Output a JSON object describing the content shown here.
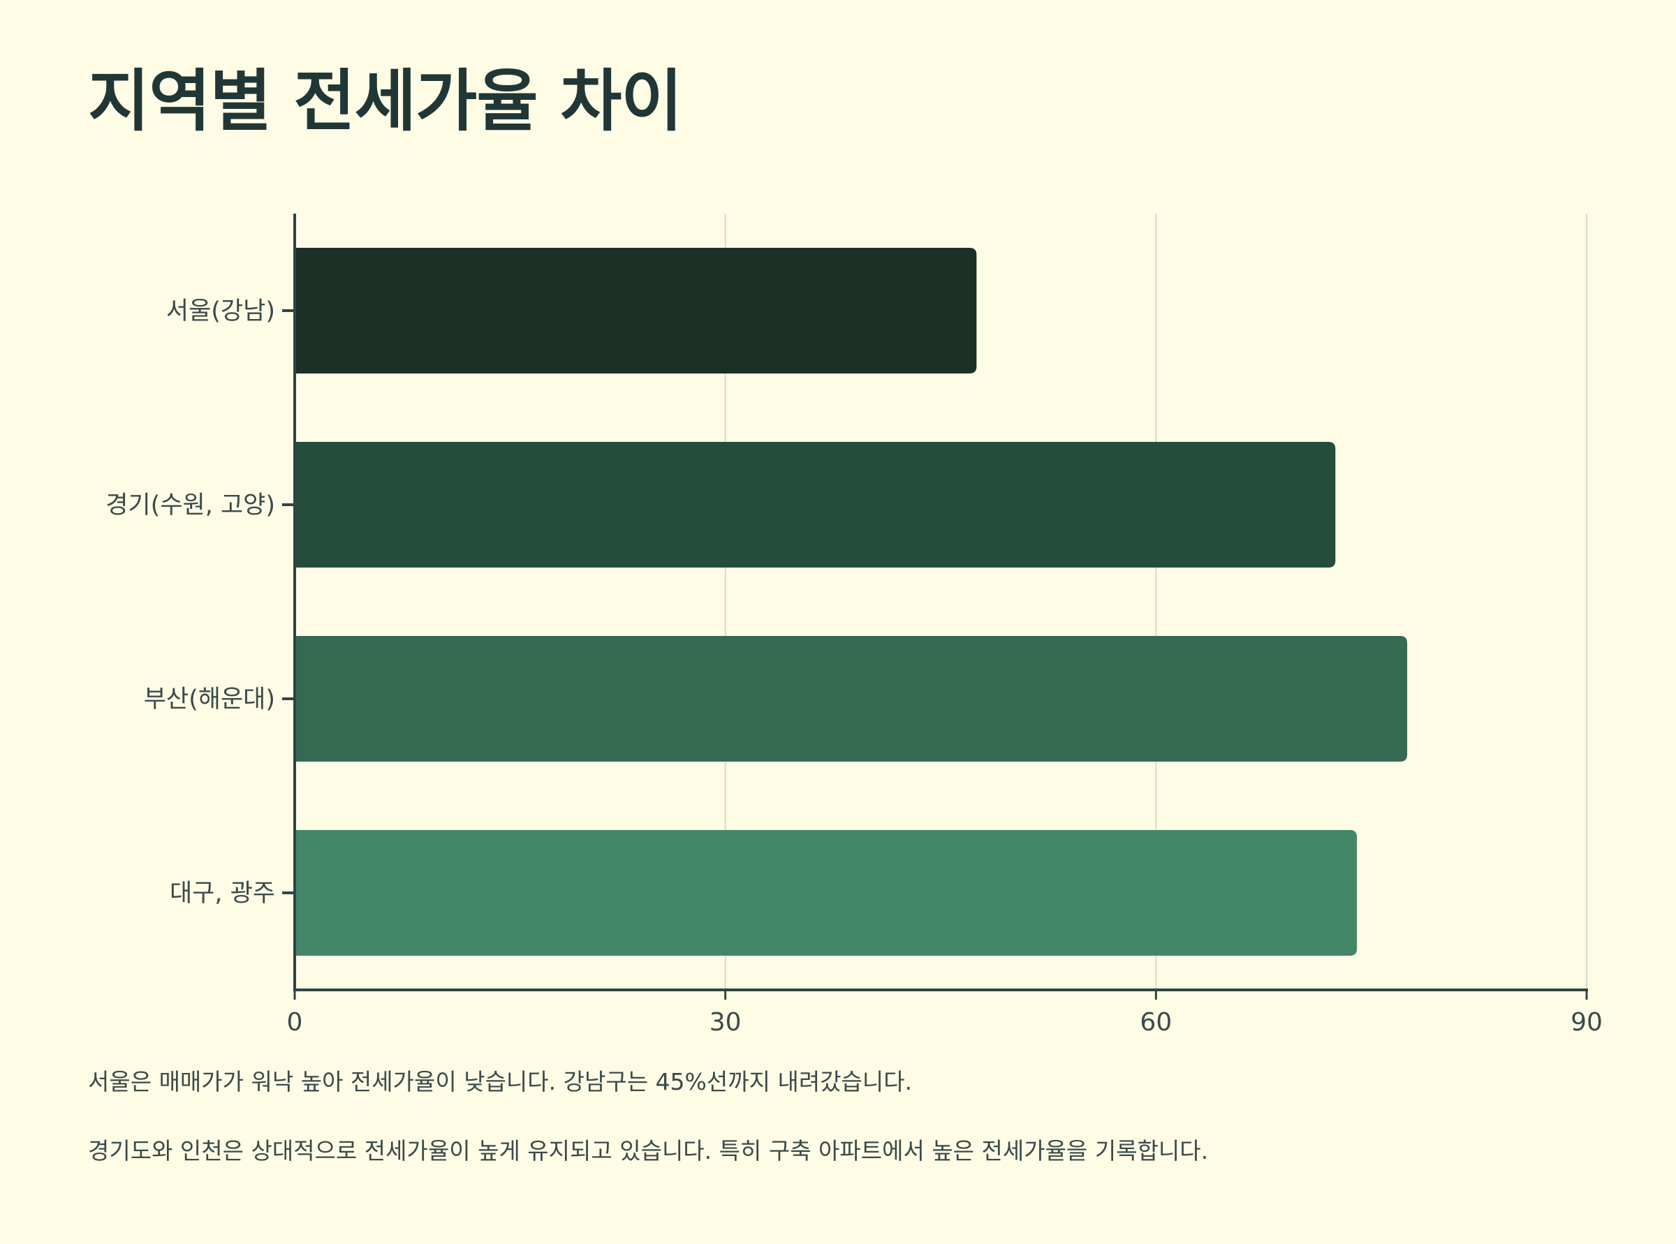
{
  "title": "지역별 전세가율 차이",
  "notes": [
    "서울은 매매가가 워낙 높아 전세가율이 낮습니다. 강남구는 45%선까지 내려갔습니다.",
    "경기도와 인천은 상대적으로 전세가율이 높게 유지되고 있습니다. 특히 구축 아파트에서 높은 전세가율을 기록합니다."
  ],
  "colors": {
    "background": "#fffce6",
    "axis": "#2f4544",
    "grid": "#d8dbc8",
    "bars": [
      "#1b3128",
      "#264d3c",
      "#356a52",
      "#448668"
    ]
  },
  "chart_data": {
    "type": "bar",
    "orientation": "horizontal",
    "title": "지역별 전세가율 차이",
    "categories": [
      "서울(강남)",
      "경기(수원, 고양)",
      "부산(해운대)",
      "대구, 광주"
    ],
    "values": [
      47.5,
      72.5,
      77.5,
      74
    ],
    "xlim": [
      0,
      90
    ],
    "xticks": [
      0,
      30,
      60,
      90
    ],
    "xlabel": "",
    "ylabel": "",
    "grid": true,
    "legend": "none"
  }
}
